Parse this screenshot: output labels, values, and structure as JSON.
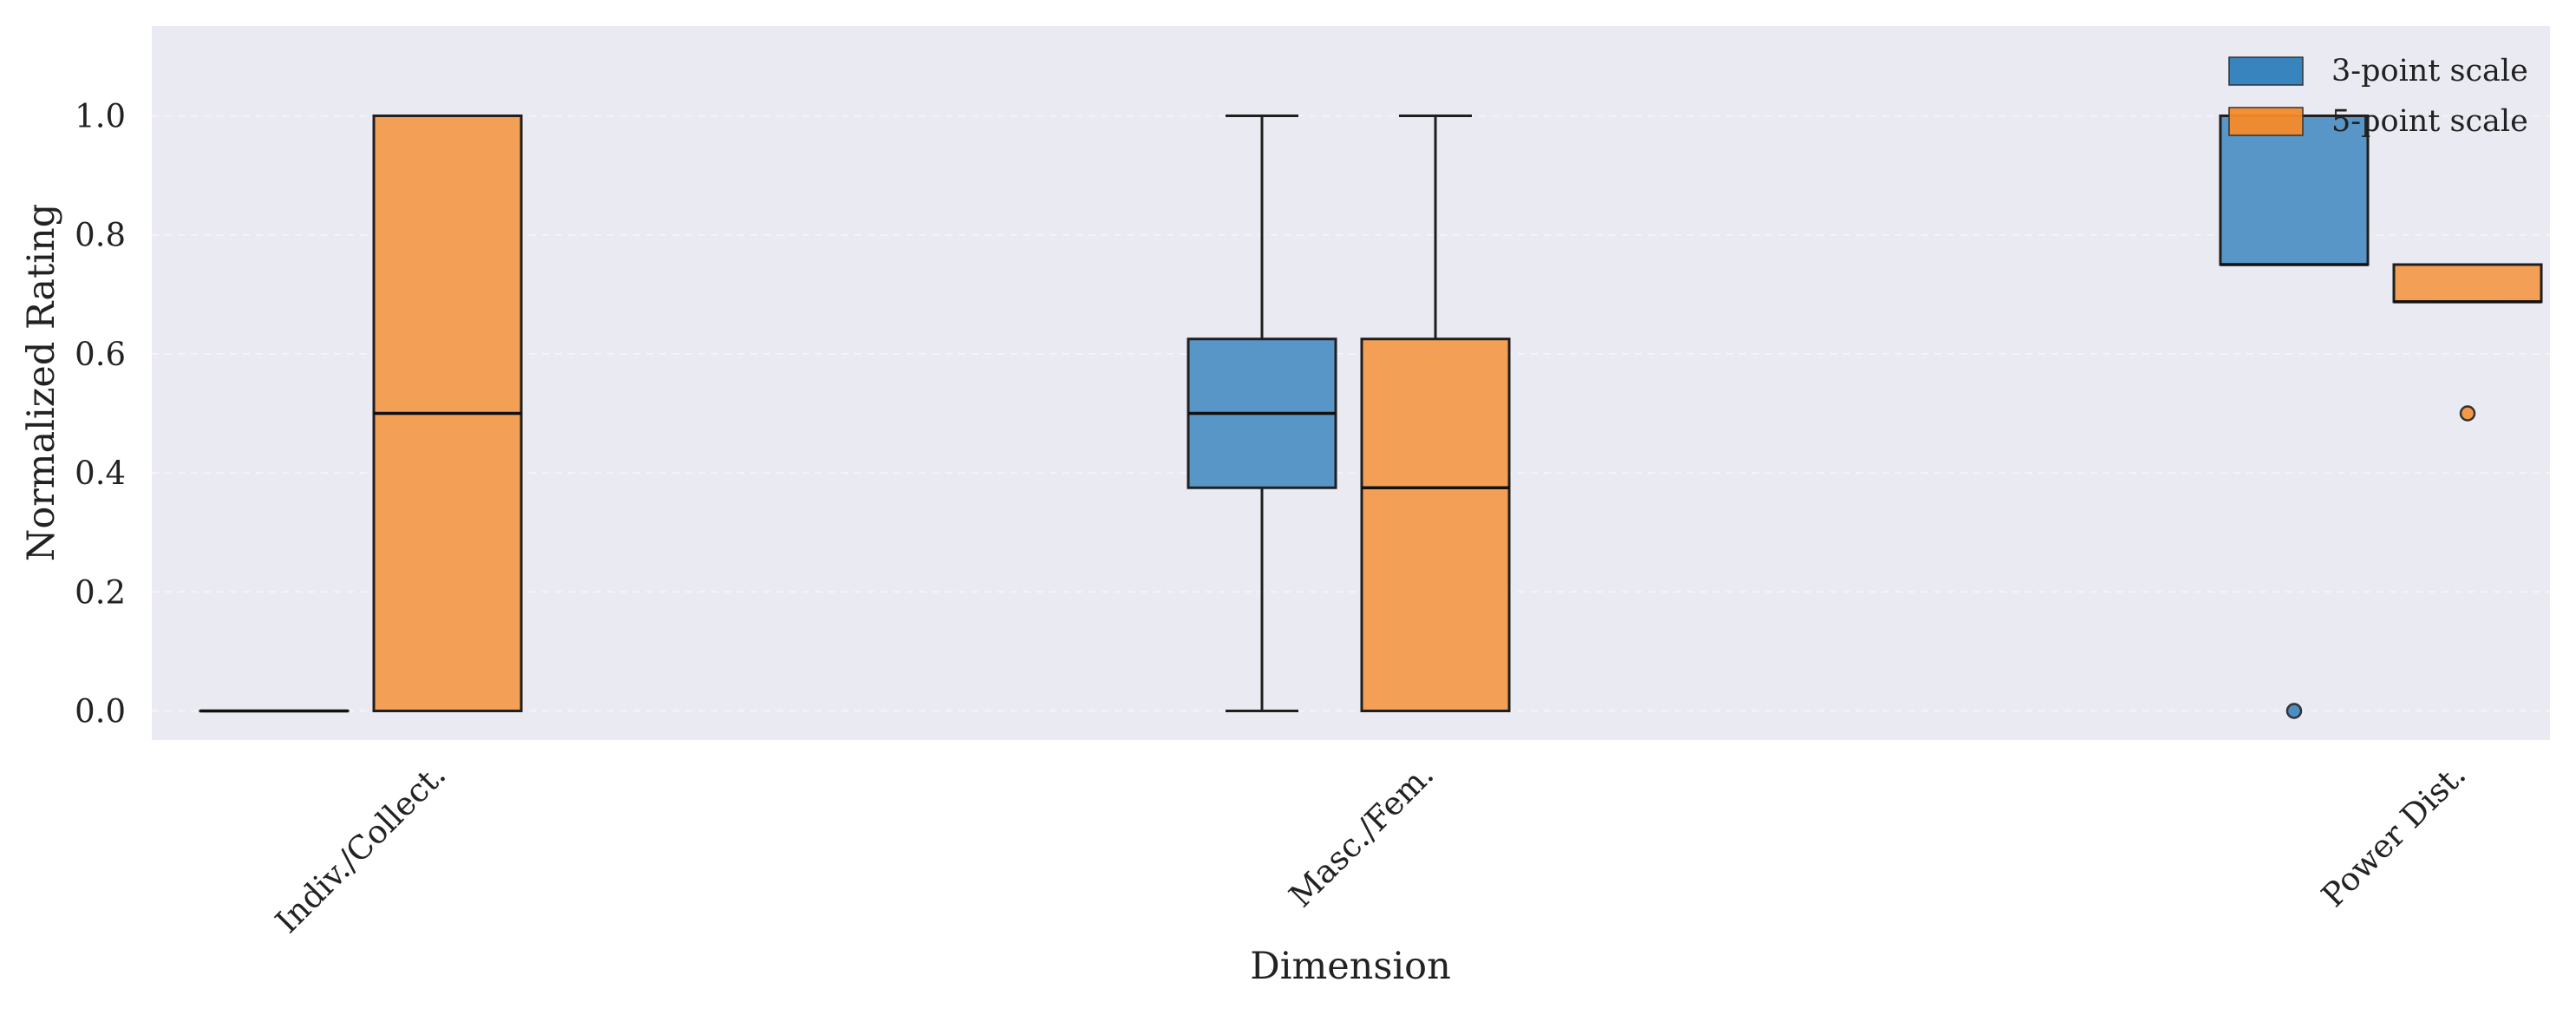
{
  "chart_data": {
    "type": "box",
    "xlabel": "Dimension",
    "ylabel": "Normalized Rating",
    "ylim": [
      -0.05,
      1.15
    ],
    "yticks": [
      "0.0",
      "0.2",
      "0.4",
      "0.6",
      "0.8",
      "1.0"
    ],
    "categories": [
      "Indiv./Collect.",
      "Masc./Fem.",
      "Power Dist."
    ],
    "grid": "y-dashed",
    "legend_position": "top-right",
    "series": [
      {
        "name": "3-point scale",
        "color": "#2E7EBB",
        "boxes": [
          {
            "category": "Indiv./Collect.",
            "whisker_low": 0.0,
            "q1": 0.0,
            "median": 0.0,
            "q3": 0.0,
            "whisker_high": 0.0,
            "outliers": []
          },
          {
            "category": "Masc./Fem.",
            "whisker_low": 0.0,
            "q1": 0.375,
            "median": 0.5,
            "q3": 0.625,
            "whisker_high": 1.0,
            "outliers": []
          },
          {
            "category": "Power Dist.",
            "whisker_low": 0.75,
            "q1": 0.75,
            "median": 0.75,
            "q3": 1.0,
            "whisker_high": 1.0,
            "outliers": [
              0.0
            ]
          }
        ]
      },
      {
        "name": "5-point scale",
        "color": "#F58A2A",
        "boxes": [
          {
            "category": "Indiv./Collect.",
            "whisker_low": 0.0,
            "q1": 0.0,
            "median": 0.5,
            "q3": 1.0,
            "whisker_high": 1.0,
            "outliers": []
          },
          {
            "category": "Masc./Fem.",
            "whisker_low": 0.0,
            "q1": 0.0,
            "median": 0.375,
            "q3": 0.625,
            "whisker_high": 1.0,
            "outliers": []
          },
          {
            "category": "Power Dist.",
            "whisker_low": 0.6875,
            "q1": 0.6875,
            "median": 0.6875,
            "q3": 0.75,
            "whisker_high": 0.75,
            "outliers": [
              0.5
            ]
          }
        ]
      }
    ]
  },
  "colors": {
    "plot_background": "#EAEAF2",
    "box_edge": "#1f1f1f"
  }
}
